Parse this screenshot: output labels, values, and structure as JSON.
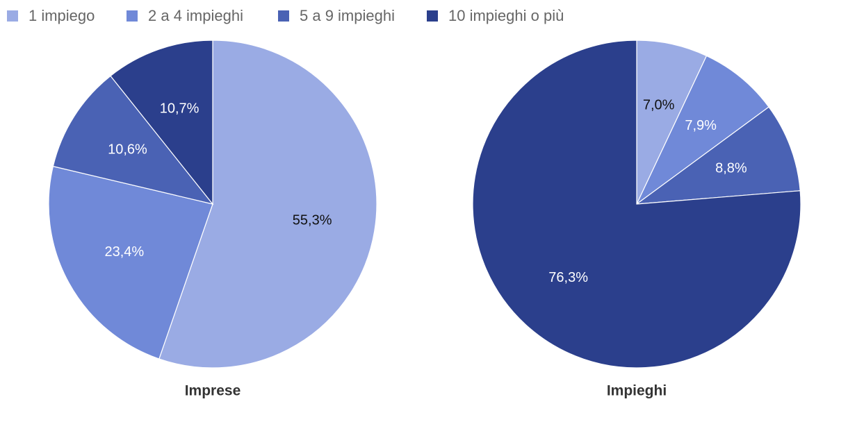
{
  "legend": {
    "labels": [
      "1 impiego",
      "2 a 4 impieghi",
      "5 a 9 impieghi",
      "10 impieghi o più"
    ],
    "colors": [
      "#9aabe4",
      "#7089d8",
      "#4a62b4",
      "#2b3f8c"
    ]
  },
  "chart_data": [
    {
      "type": "pie",
      "title": "Imprese",
      "values": [
        55.3,
        23.4,
        10.6,
        10.7
      ],
      "value_labels": [
        "55,3%",
        "23,4%",
        "10,6%",
        "10,7%"
      ]
    },
    {
      "type": "pie",
      "title": "Impieghi",
      "values": [
        7.0,
        7.9,
        8.8,
        76.3
      ],
      "value_labels": [
        "7,0%",
        "7,9%",
        "8,8%",
        "76,3%"
      ]
    }
  ]
}
